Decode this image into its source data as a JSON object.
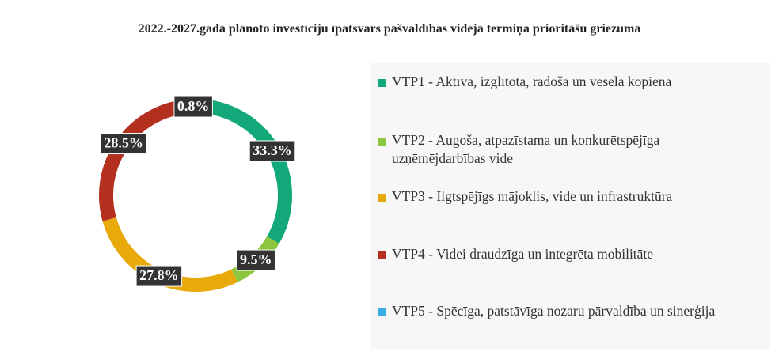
{
  "chart_data": {
    "type": "donut",
    "title": "2022.-2027.gadā plānoto investīciju īpatsvars pašvaldības vidējā termiņa prioritāšu griezumā",
    "categories": [
      "VTP1 - Aktīva, izglītota, radoša un vesela kopiena",
      "VTP2 - Augoša, atpazīstama un konkurētspējīga uzņēmējdarbības vide",
      "VTP3 - Ilgtspējīgs mājoklis, vide un infrastruktūra",
      "VTP4 - Videi draudzīga un integrēta mobilitāte",
      "VTP5 - Spēcīga, patstāvīga nozaru pārvaldība un sinerģija"
    ],
    "values": [
      33.3,
      9.5,
      27.8,
      28.5,
      0.8
    ],
    "value_labels": [
      "33.3%",
      "9.5%",
      "27.8%",
      "28.5%",
      "0.8%"
    ],
    "colors": [
      "#13a87a",
      "#8cc63e",
      "#e8a90a",
      "#b3301f",
      "#3aaee8"
    ],
    "legend": "right"
  }
}
